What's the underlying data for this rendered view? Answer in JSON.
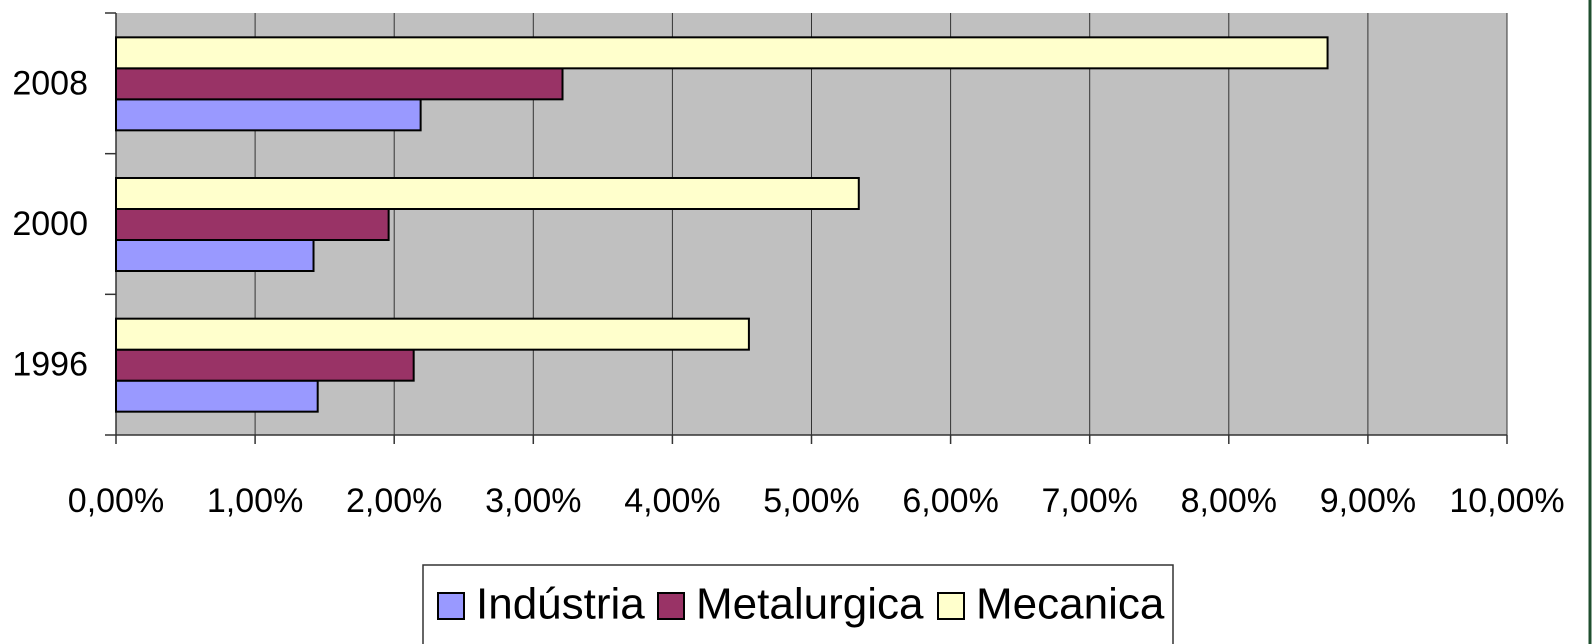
{
  "chart_data": {
    "type": "hbar",
    "categories": [
      "1996",
      "2000",
      "2008"
    ],
    "series": [
      {
        "name": "Indústria",
        "color": "#9999ff",
        "values": [
          1.45,
          1.42,
          2.19
        ]
      },
      {
        "name": "Metalurgica",
        "color": "#993366",
        "values": [
          2.14,
          1.96,
          3.21
        ]
      },
      {
        "name": "Mecanica",
        "color": "#ffffcc",
        "values": [
          4.55,
          5.34,
          8.71
        ]
      }
    ],
    "xlim": [
      0,
      10
    ],
    "xticks": [
      {
        "value": 0,
        "label": "0,00%"
      },
      {
        "value": 1,
        "label": "1,00%"
      },
      {
        "value": 2,
        "label": "2,00%"
      },
      {
        "value": 3,
        "label": "3,00%"
      },
      {
        "value": 4,
        "label": "4,00%"
      },
      {
        "value": 5,
        "label": "5,00%"
      },
      {
        "value": 6,
        "label": "6,00%"
      },
      {
        "value": 7,
        "label": "7,00%"
      },
      {
        "value": 8,
        "label": "8,00%"
      },
      {
        "value": 9,
        "label": "9,00%"
      },
      {
        "value": 10,
        "label": "10,00%"
      }
    ],
    "grid": true,
    "legend": "bottom"
  }
}
